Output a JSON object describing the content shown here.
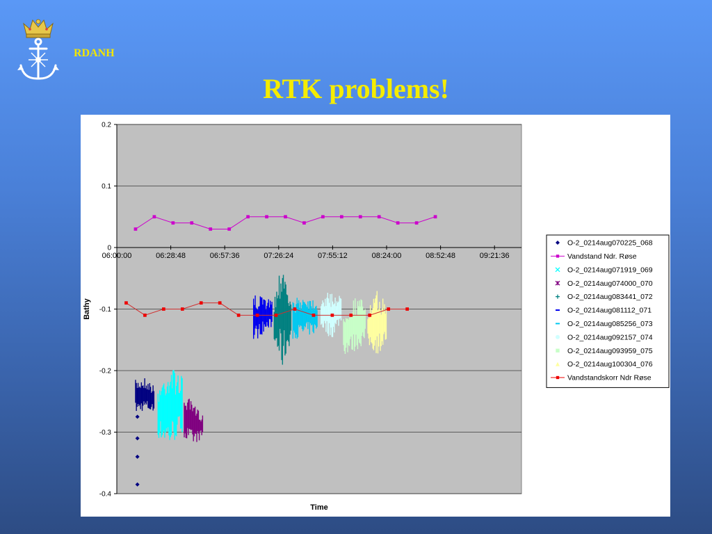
{
  "header": {
    "org": "RDANH"
  },
  "slide": {
    "title": "RTK problems!"
  },
  "logo": {
    "icon": "crown-anchor-icon",
    "colors": {
      "crown": "#e6c74a",
      "anchor": "#ffffff"
    }
  },
  "colors": {
    "title": "#f5ec00",
    "plot_bg": "#c0c0c0",
    "ref_line": "#cc00cc",
    "korr_line": "#d03030",
    "korr_marker": "#ee0000"
  },
  "chart_data": {
    "type": "scatter",
    "xlabel": "Time",
    "ylabel": "Bathy",
    "xlim": [
      "06:00:00",
      "09:36:00"
    ],
    "ylim": [
      -0.4,
      0.2
    ],
    "x_tick_labels": [
      "06:00:00",
      "06:28:48",
      "06:57:36",
      "07:26:24",
      "07:55:12",
      "08:24:00",
      "08:52:48",
      "09:21:36"
    ],
    "y_tick_labels": [
      "0.2",
      "0.1",
      "0",
      "-0.1",
      "-0.2",
      "-0.3",
      "-0.4"
    ],
    "grid": true,
    "legend_position": "right",
    "series": [
      {
        "name": "O-2_0214aug070225_068",
        "marker": "diamond",
        "color": "#000080",
        "x": [
          "06:10",
          "06:14",
          "06:20"
        ],
        "band_low": [
          -0.27,
          -0.265,
          -0.27
        ],
        "band_high": [
          -0.215,
          -0.21,
          -0.225
        ],
        "outliers": {
          "x": [
            "06:11",
            "06:11",
            "06:11",
            "06:11"
          ],
          "y": [
            -0.275,
            -0.31,
            -0.34,
            -0.385
          ]
        }
      },
      {
        "name": "Vandstand Ndr. Røse",
        "marker": "square",
        "color": "#cc00cc",
        "x": [
          "06:10",
          "06:20",
          "06:30",
          "06:40",
          "06:50",
          "07:00",
          "07:10",
          "07:20",
          "07:30",
          "07:40",
          "07:50",
          "08:00",
          "08:10",
          "08:20",
          "08:30",
          "08:40",
          "08:50"
        ],
        "y": [
          0.03,
          0.05,
          0.04,
          0.04,
          0.03,
          0.03,
          0.05,
          0.05,
          0.05,
          0.04,
          0.05,
          0.05,
          0.05,
          0.05,
          0.04,
          0.04,
          0.05
        ]
      },
      {
        "name": "O-2_0214aug071919_069",
        "marker": "x",
        "color": "#00ffff",
        "x": [
          "06:22",
          "06:28",
          "06:35"
        ],
        "band_low": [
          -0.31,
          -0.325,
          -0.3
        ],
        "band_high": [
          -0.225,
          -0.19,
          -0.21
        ]
      },
      {
        "name": "O-2_0214aug074000_070",
        "marker": "star",
        "color": "#800080",
        "x": [
          "06:36",
          "06:41",
          "06:46"
        ],
        "band_low": [
          -0.315,
          -0.32,
          -0.31
        ],
        "band_high": [
          -0.235,
          -0.255,
          -0.27
        ]
      },
      {
        "name": "O-2_0214aug083441_072",
        "marker": "plus",
        "color": "#008080",
        "x": [
          "07:24",
          "07:29",
          "07:33"
        ],
        "band_low": [
          -0.16,
          -0.2,
          -0.15
        ],
        "band_high": [
          -0.08,
          -0.005,
          -0.09
        ]
      },
      {
        "name": "O-2_0214aug081112_071",
        "marker": "dash",
        "color": "#0000ee",
        "x": [
          "07:13",
          "07:18",
          "07:23"
        ],
        "band_low": [
          -0.155,
          -0.14,
          -0.13
        ],
        "band_high": [
          -0.075,
          -0.08,
          -0.085
        ]
      },
      {
        "name": "O-2_0214aug085256_073",
        "marker": "dash",
        "color": "#00c8f0",
        "x": [
          "07:34",
          "07:40",
          "07:47"
        ],
        "band_low": [
          -0.15,
          -0.145,
          -0.14
        ],
        "band_high": [
          -0.085,
          -0.075,
          -0.085
        ]
      },
      {
        "name": "O-2_0214aug092157_074",
        "marker": "circle",
        "color": "#d0ffff",
        "x": [
          "07:49",
          "07:55",
          "08:00"
        ],
        "band_low": [
          -0.13,
          -0.15,
          -0.12
        ],
        "band_high": [
          -0.08,
          -0.07,
          -0.08
        ]
      },
      {
        "name": "O-2_0214aug093959_075",
        "marker": "square",
        "color": "#c8ffc8",
        "x": [
          "08:01",
          "08:07",
          "08:13"
        ],
        "band_low": [
          -0.175,
          -0.17,
          -0.155
        ],
        "band_high": [
          -0.1,
          -0.08,
          -0.085
        ]
      },
      {
        "name": "O-2_0214aug100304_076",
        "marker": "triangle",
        "color": "#ffffa0",
        "x": [
          "08:14",
          "08:19",
          "08:24"
        ],
        "band_low": [
          -0.16,
          -0.175,
          -0.155
        ],
        "band_high": [
          -0.1,
          -0.07,
          -0.09
        ]
      },
      {
        "name": "Vandstandskorr Ndr Røse",
        "marker": "square",
        "color": "#ee0000",
        "x": [
          "06:05",
          "06:15",
          "06:25",
          "06:35",
          "06:45",
          "06:55",
          "07:05",
          "07:15",
          "07:25",
          "07:35",
          "07:45",
          "07:55",
          "08:05",
          "08:15",
          "08:25",
          "08:35"
        ],
        "y": [
          -0.09,
          -0.11,
          -0.1,
          -0.1,
          -0.09,
          -0.09,
          -0.11,
          -0.11,
          -0.11,
          -0.1,
          -0.11,
          -0.11,
          -0.11,
          -0.11,
          -0.1,
          -0.1
        ]
      }
    ]
  }
}
